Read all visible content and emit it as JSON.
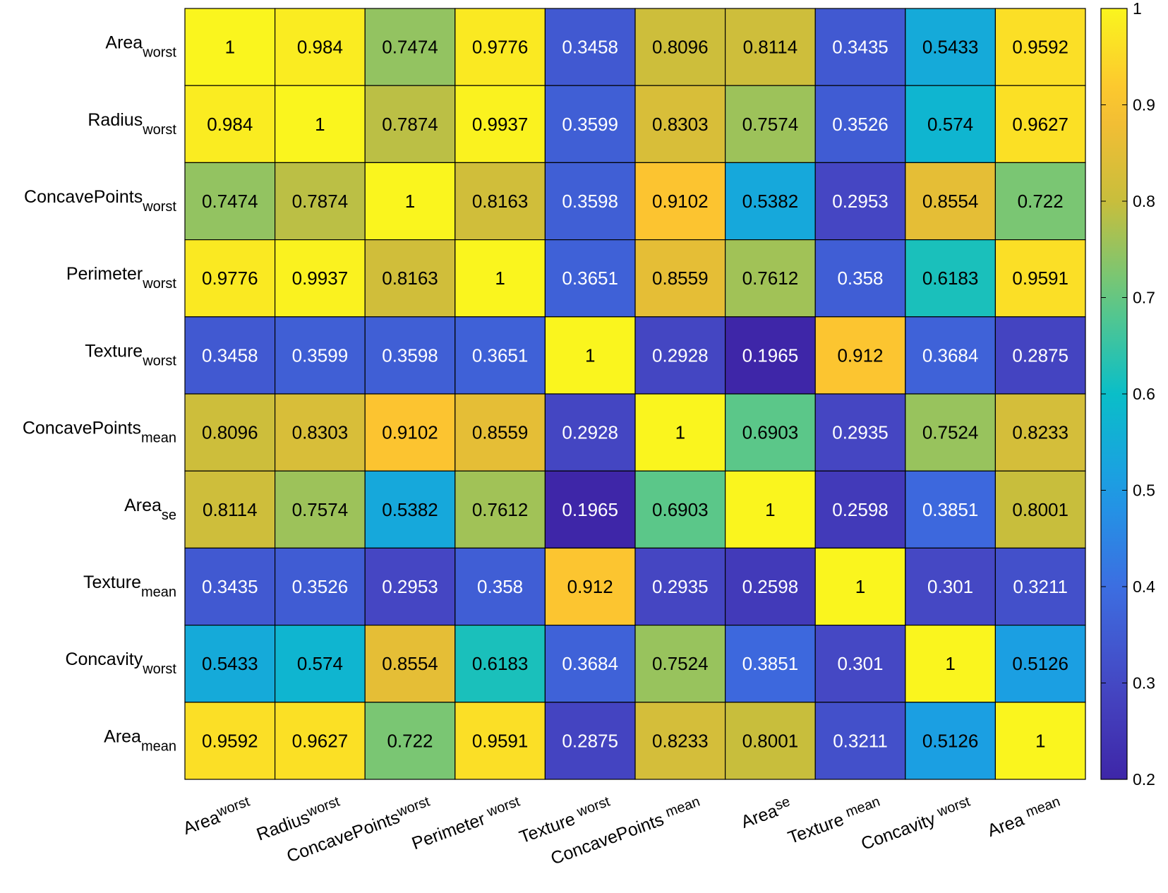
{
  "chart_data": {
    "type": "heatmap",
    "title": "",
    "rows": [
      {
        "base": "Area",
        "sub": "worst"
      },
      {
        "base": "Radius",
        "sub": "worst"
      },
      {
        "base": "ConcavePoints",
        "sub": "worst"
      },
      {
        "base": "Perimeter",
        "sub": "worst"
      },
      {
        "base": "Texture",
        "sub": "worst"
      },
      {
        "base": "ConcavePoints",
        "sub": "mean"
      },
      {
        "base": "Area",
        "sub": "se"
      },
      {
        "base": "Texture",
        "sub": "mean"
      },
      {
        "base": "Concavity",
        "sub": "worst"
      },
      {
        "base": "Area",
        "sub": "mean"
      }
    ],
    "columns": [
      {
        "base": "Area",
        "sub": "worst"
      },
      {
        "base": "Radius",
        "sub": "worst"
      },
      {
        "base": "ConcavePoints",
        "sub": "worst"
      },
      {
        "base": "Perimeter ",
        "sub": "worst"
      },
      {
        "base": "Texture ",
        "sub": "worst"
      },
      {
        "base": "ConcavePoints ",
        "sub": "mean"
      },
      {
        "base": "Area",
        "sub": "se"
      },
      {
        "base": "Texture ",
        "sub": "mean"
      },
      {
        "base": "Concavity ",
        "sub": "worst"
      },
      {
        "base": "Area ",
        "sub": "mean"
      }
    ],
    "values": [
      [
        "1",
        "0.984",
        "0.7474",
        "0.9776",
        "0.3458",
        "0.8096",
        "0.8114",
        "0.3435",
        "0.5433",
        "0.9592"
      ],
      [
        "0.984",
        "1",
        "0.7874",
        "0.9937",
        "0.3599",
        "0.8303",
        "0.7574",
        "0.3526",
        "0.574",
        "0.9627"
      ],
      [
        "0.7474",
        "0.7874",
        "1",
        "0.8163",
        "0.3598",
        "0.9102",
        "0.5382",
        "0.2953",
        "0.8554",
        "0.722"
      ],
      [
        "0.9776",
        "0.9937",
        "0.8163",
        "1",
        "0.3651",
        "0.8559",
        "0.7612",
        "0.358",
        "0.6183",
        "0.9591"
      ],
      [
        "0.3458",
        "0.3599",
        "0.3598",
        "0.3651",
        "1",
        "0.2928",
        "0.1965",
        "0.912",
        "0.3684",
        "0.2875"
      ],
      [
        "0.8096",
        "0.8303",
        "0.9102",
        "0.8559",
        "0.2928",
        "1",
        "0.6903",
        "0.2935",
        "0.7524",
        "0.8233"
      ],
      [
        "0.8114",
        "0.7574",
        "0.5382",
        "0.7612",
        "0.1965",
        "0.6903",
        "1",
        "0.2598",
        "0.3851",
        "0.8001"
      ],
      [
        "0.3435",
        "0.3526",
        "0.2953",
        "0.358",
        "0.912",
        "0.2935",
        "0.2598",
        "1",
        "0.301",
        "0.3211"
      ],
      [
        "0.5433",
        "0.574",
        "0.8554",
        "0.6183",
        "0.3684",
        "0.7524",
        "0.3851",
        "0.301",
        "1",
        "0.5126"
      ],
      [
        "0.9592",
        "0.9627",
        "0.722",
        "0.9591",
        "0.2875",
        "0.8233",
        "0.8001",
        "0.3211",
        "0.5126",
        "1"
      ]
    ],
    "colorbar": {
      "range": [
        0.2,
        1
      ],
      "ticks": [
        "0.2",
        "0.3",
        "0.4",
        "0.5",
        "0.6",
        "0.7",
        "0.8",
        "0.9",
        "1"
      ],
      "colormap": "parula"
    }
  }
}
